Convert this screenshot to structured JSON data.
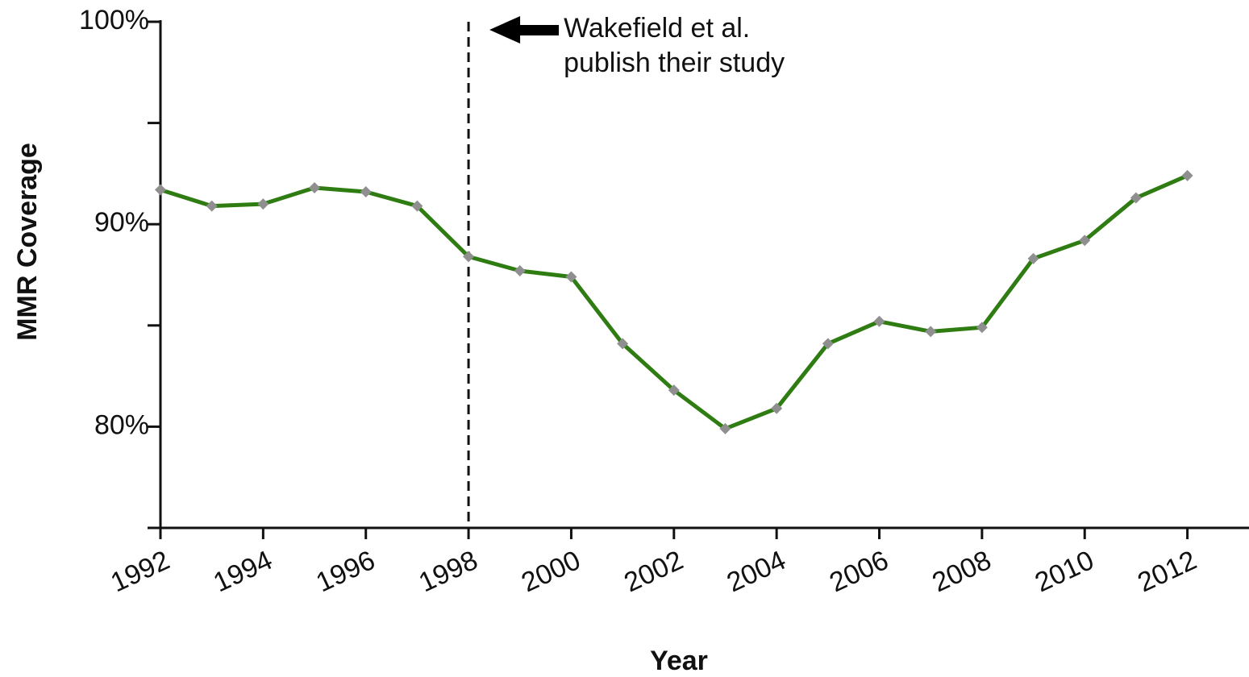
{
  "chart_data": {
    "type": "line",
    "x_label": "Year",
    "y_label": "MMR Coverage",
    "x": [
      1992,
      1993,
      1994,
      1995,
      1996,
      1997,
      1998,
      1999,
      2000,
      2001,
      2002,
      2003,
      2004,
      2005,
      2006,
      2007,
      2008,
      2009,
      2010,
      2011,
      2012
    ],
    "values": [
      91.7,
      90.9,
      91.0,
      91.8,
      91.6,
      90.9,
      88.4,
      87.7,
      87.4,
      84.1,
      81.8,
      79.9,
      80.9,
      84.1,
      85.2,
      84.7,
      84.9,
      88.3,
      89.2,
      91.3,
      92.4
    ],
    "color": "#2f7d12",
    "marker_color": "#8f8f8f",
    "xlim": [
      1992,
      2013.2
    ],
    "xticks": [
      1992,
      1994,
      1996,
      1998,
      2000,
      2002,
      2004,
      2006,
      2008,
      2010,
      2012
    ],
    "ylim": [
      75,
      100
    ],
    "yticks": [
      {
        "value": 80,
        "label": "80%"
      },
      {
        "value": 90,
        "label": "90%"
      },
      {
        "value": 100,
        "label": "100%"
      }
    ],
    "yminor_ticks": [
      75,
      85,
      95
    ],
    "annotation": {
      "x": 1998,
      "lines": [
        "Wakefield et al.",
        "publish their study"
      ]
    }
  }
}
